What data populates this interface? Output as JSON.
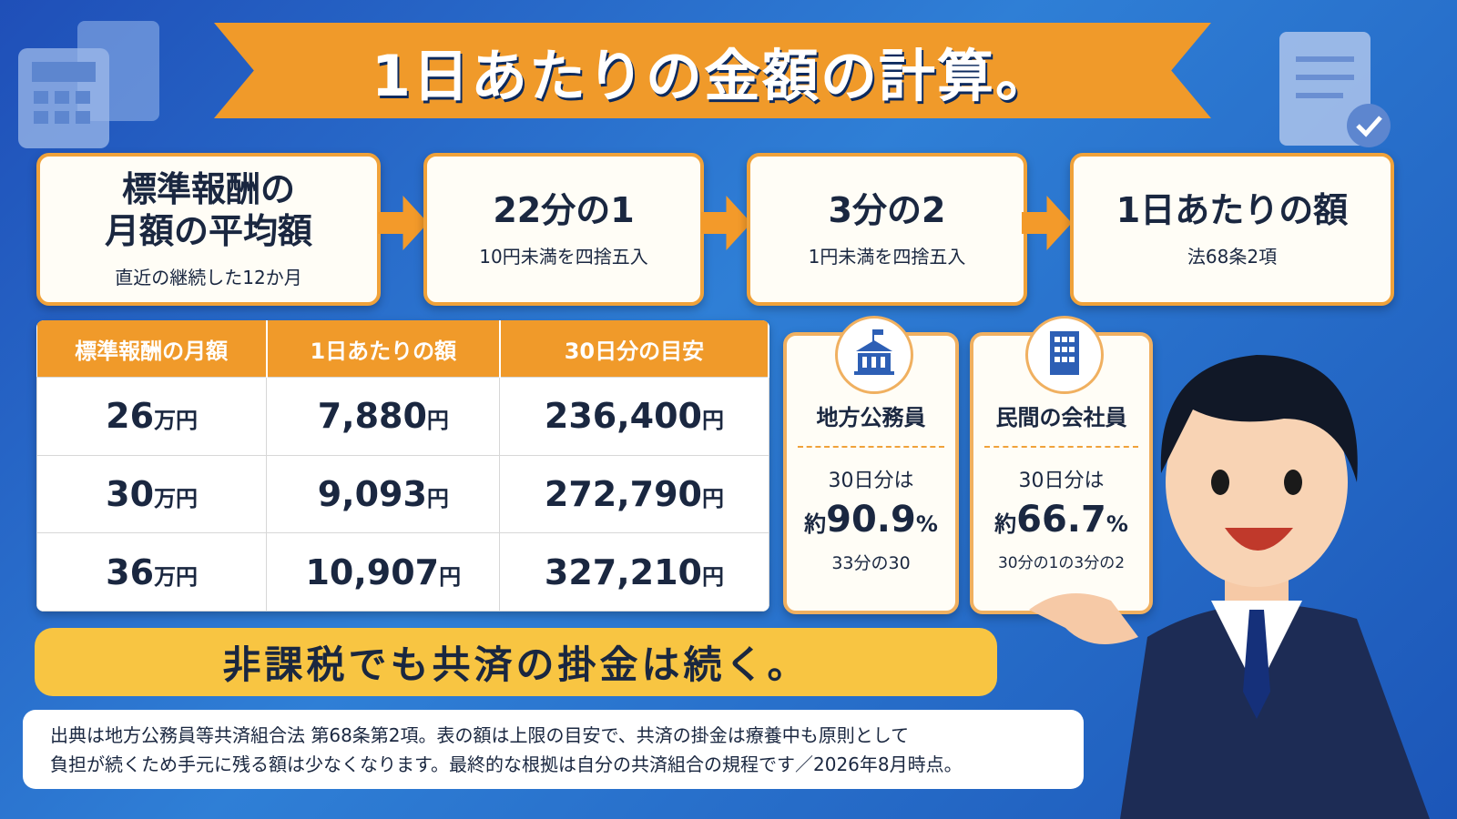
{
  "header": {
    "title": "1日あたりの金額の計算。"
  },
  "steps": [
    {
      "title_lines": [
        "標準報酬の",
        "月額の平均額"
      ],
      "note": "直近の継続した12か月"
    },
    {
      "title_lines": [
        "22分の1"
      ],
      "note": "10円未満を四捨五入"
    },
    {
      "title_lines": [
        "3分の2"
      ],
      "note": "1円未満を四捨五入"
    },
    {
      "title_lines": [
        "1日あたりの額"
      ],
      "note": "法68条2項"
    }
  ],
  "table": {
    "header": [
      "標準報酬の月額",
      "1日あたりの額",
      "30日分の目安"
    ],
    "rows": [
      [
        {
          "value": "26",
          "unit": "万円"
        },
        {
          "value": "7,880",
          "unit": "円"
        },
        {
          "value": "236,400",
          "unit": "円"
        }
      ],
      [
        {
          "value": "30",
          "unit": "万円"
        },
        {
          "value": "9,093",
          "unit": "円"
        },
        {
          "value": "272,790",
          "unit": "円"
        }
      ],
      [
        {
          "value": "36",
          "unit": "万円"
        },
        {
          "value": "10,907",
          "unit": "円"
        },
        {
          "value": "327,210",
          "unit": "円"
        }
      ]
    ]
  },
  "cards": [
    {
      "label": "地方公務員",
      "lead": "30日分は",
      "prefix": "約",
      "value": "90.9",
      "unit": "%",
      "note": "33分の30"
    },
    {
      "label": "民間の会社員",
      "lead": "30日分は",
      "prefix": "約",
      "value": "66.7",
      "unit": "%",
      "note": "30分の1の3分の2"
    }
  ],
  "banner": "非課税でも共済の掛金は続く。",
  "footer": {
    "lines": [
      "出典は地方公務員等共済組合法 第68条第2項。表の額は上限の目安で、共済の掛金は療養中も原則として",
      "負担が続くため手元に残る額は少なくなります。最終的な根拠は自分の共済組合の規程です／2026年8月時点。"
    ]
  }
}
